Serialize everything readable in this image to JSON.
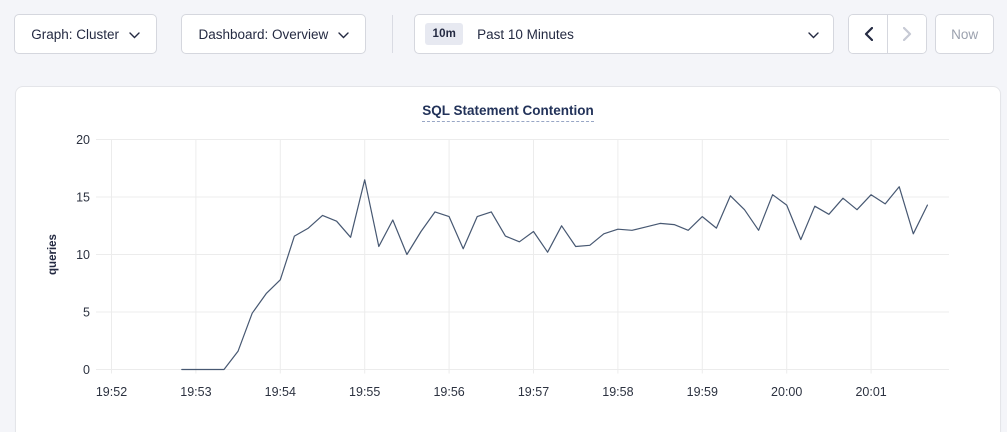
{
  "toolbar": {
    "graph_dropdown": {
      "label": "Graph: Cluster"
    },
    "dashboard_dropdown": {
      "label": "Dashboard: Overview"
    },
    "time_range": {
      "badge": "10m",
      "label": "Past 10 Minutes"
    },
    "now_label": "Now"
  },
  "chart_data": {
    "type": "line",
    "title": "SQL Statement Contention",
    "ylabel": "queries",
    "xlabel": "",
    "ylim": [
      0,
      20
    ],
    "y_ticks": [
      0,
      5,
      10,
      15,
      20
    ],
    "x_ticks": [
      "19:52",
      "19:53",
      "19:54",
      "19:55",
      "19:56",
      "19:57",
      "19:58",
      "19:59",
      "20:00",
      "20:01"
    ],
    "grid": true,
    "legend": "none",
    "line_color": "#475872",
    "grid_color": "#ececec",
    "times": [
      "19:52:50",
      "19:53:00",
      "19:53:10",
      "19:53:20",
      "19:53:30",
      "19:53:40",
      "19:53:50",
      "19:54:00",
      "19:54:10",
      "19:54:20",
      "19:54:30",
      "19:54:40",
      "19:54:50",
      "19:55:00",
      "19:55:10",
      "19:55:20",
      "19:55:30",
      "19:55:40",
      "19:55:50",
      "19:56:00",
      "19:56:10",
      "19:56:20",
      "19:56:30",
      "19:56:40",
      "19:56:50",
      "19:57:00",
      "19:57:10",
      "19:57:20",
      "19:57:30",
      "19:57:40",
      "19:57:50",
      "19:58:00",
      "19:58:10",
      "19:58:20",
      "19:58:30",
      "19:58:40",
      "19:58:50",
      "19:59:00",
      "19:59:10",
      "19:59:20",
      "19:59:30",
      "19:59:40",
      "19:59:50",
      "20:00:00",
      "20:00:10",
      "20:00:20",
      "20:00:30",
      "20:00:40",
      "20:00:50",
      "20:01:00",
      "20:01:10",
      "20:01:20",
      "20:01:30",
      "20:01:40"
    ],
    "values": [
      0,
      0,
      0,
      0,
      1.6,
      4.9,
      6.6,
      7.8,
      11.6,
      12.3,
      13.4,
      12.9,
      11.5,
      16.5,
      10.7,
      13.0,
      10.0,
      12.0,
      13.7,
      13.3,
      10.5,
      13.3,
      13.7,
      11.6,
      11.1,
      12.0,
      10.2,
      12.5,
      10.7,
      10.8,
      11.8,
      12.2,
      12.1,
      12.4,
      12.7,
      12.6,
      12.1,
      13.3,
      12.3,
      15.1,
      13.9,
      12.1,
      15.2,
      14.3,
      11.3,
      14.2,
      13.5,
      14.9,
      13.9,
      15.2,
      14.4,
      15.9,
      11.8,
      14.3
    ]
  }
}
